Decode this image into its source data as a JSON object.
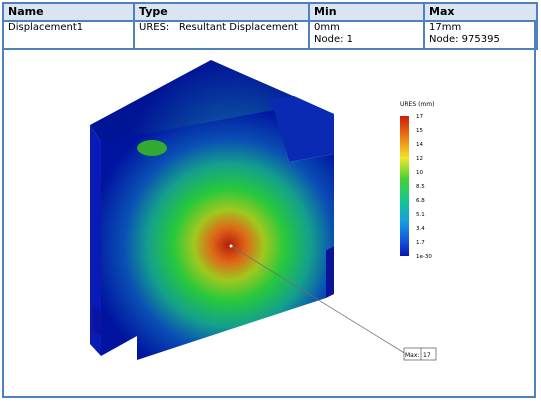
{
  "table": {
    "headers": [
      "Name",
      "Type",
      "Min",
      "Max"
    ],
    "row": {
      "name": "Displacement1",
      "type": "URES:   Resultant Displacement",
      "min_value": "0mm",
      "min_node": "Node: 1",
      "max_value": "17mm",
      "max_node": "Node: 975395"
    }
  },
  "legend": {
    "title": "URES (mm)",
    "ticks": [
      "17",
      "15",
      "14",
      "12",
      "10",
      "8.5",
      "6.8",
      "5.1",
      "3.4",
      "1.7",
      "1e-30"
    ]
  },
  "probe": {
    "label": "Max:",
    "value": "17"
  },
  "colors": {
    "border": "#4f81bd",
    "header_bg": "#dbe5f1",
    "min_color": "#0000b4",
    "max_color": "#c81e0a"
  }
}
